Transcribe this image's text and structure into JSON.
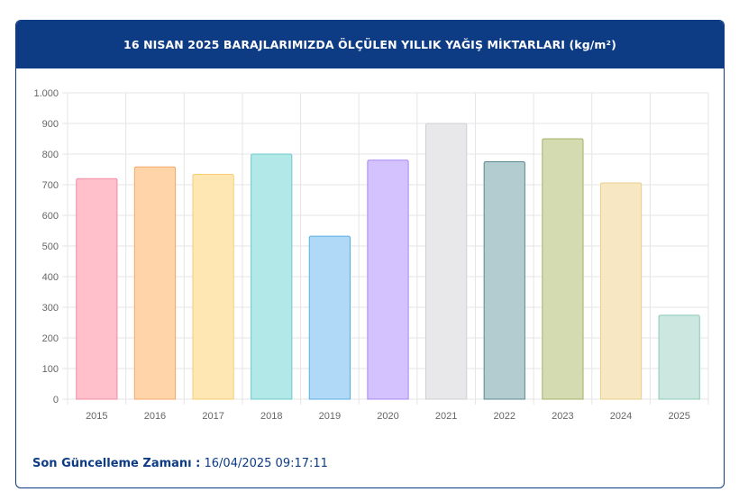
{
  "header": {
    "title": "16 NISAN 2025 BARAJLARIMIZDA ÖLÇÜLEN YILLIK YAĞIŞ MİKTARLARI (kg/m²)"
  },
  "footer": {
    "label": "Son Güncelleme Zamanı :",
    "value": "16/04/2025 09:17:11"
  },
  "chart_data": {
    "type": "bar",
    "title": "16 NISAN 2025 BARAJLARIMIZDA ÖLÇÜLEN YILLIK YAĞIŞ MİKTARLARI (kg/m²)",
    "categories": [
      "2015",
      "2016",
      "2017",
      "2018",
      "2019",
      "2020",
      "2021",
      "2022",
      "2023",
      "2024",
      "2025"
    ],
    "values": [
      720,
      758,
      734,
      800,
      532,
      780,
      900,
      775,
      850,
      706,
      274
    ],
    "ylim": [
      0,
      1000
    ],
    "yticks": [
      0,
      100,
      200,
      300,
      400,
      500,
      600,
      700,
      800,
      900,
      1000
    ],
    "ytick_labels": [
      "0",
      "100",
      "200",
      "300",
      "400",
      "500",
      "600",
      "700",
      "800",
      "900",
      "1.000"
    ],
    "grid": true,
    "legend": "none",
    "colors": {
      "fills": [
        "#ffc0cc",
        "#ffd4a8",
        "#ffe7b3",
        "#b3e8e8",
        "#b0d8f7",
        "#d4c2ff",
        "#e8e8ea",
        "#b3ccd0",
        "#d4dbb0",
        "#f7e7c2",
        "#cbe7e0"
      ],
      "strokes": [
        "#ee8da3",
        "#f3a86a",
        "#f5cd73",
        "#6fcaca",
        "#59aee3",
        "#a887f3",
        "#cfcfd2",
        "#5b8a91",
        "#a3b26b",
        "#e8cf8e",
        "#8ccbb9"
      ]
    }
  }
}
